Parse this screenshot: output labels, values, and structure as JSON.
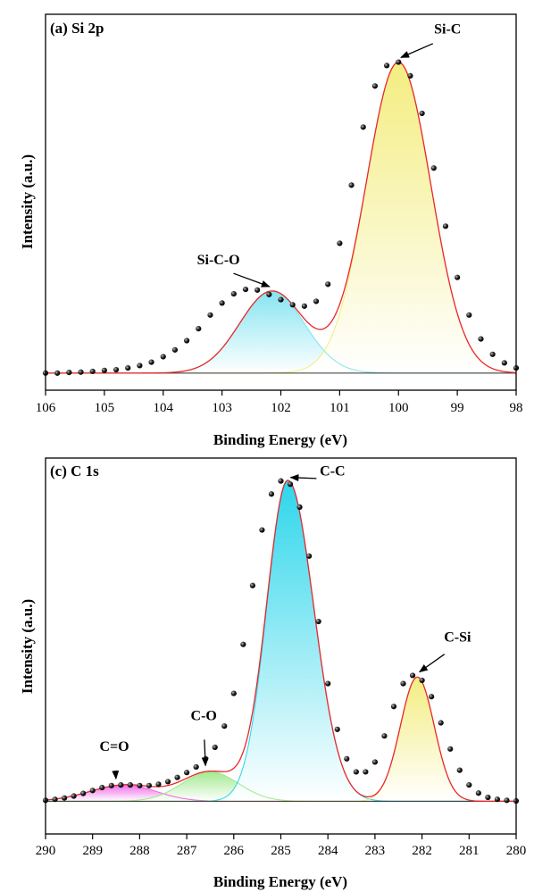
{
  "chart_data": [
    {
      "type": "line",
      "panel_label": "(a) Si 2p",
      "xlabel": "Binding Energy (eV)",
      "ylabel": "Intensity (a.u.)",
      "xlim": [
        106,
        98
      ],
      "ylim": [
        -0.05,
        1.05
      ],
      "x_reversed": true,
      "xticks": [
        106,
        105,
        104,
        103,
        102,
        101,
        100,
        99,
        98
      ],
      "y_ticks_shown": false,
      "grid": false,
      "legend": "none",
      "peaks": [
        {
          "name": "Si-C-O",
          "center": 102.15,
          "height": 0.24,
          "sigma_left": 0.55,
          "sigma_right": 0.55,
          "color": "#7fe3f0"
        },
        {
          "name": "Si-C",
          "center": 100.0,
          "height": 0.91,
          "sigma_left": 0.55,
          "sigma_right": 0.55,
          "color": "#f3ec7a"
        }
      ],
      "annotations": [
        {
          "text": "Si-C-O",
          "x": 102.15,
          "y": 0.24
        },
        {
          "text": "Si-C",
          "x": 100.0,
          "y": 0.91
        }
      ],
      "fit_color": "#e8272a",
      "data_points": {
        "x": [
          106.0,
          105.8,
          105.6,
          105.4,
          105.2,
          105.0,
          104.8,
          104.6,
          104.4,
          104.2,
          104.0,
          103.8,
          103.6,
          103.4,
          103.2,
          103.0,
          102.8,
          102.6,
          102.4,
          102.2,
          102.0,
          101.8,
          101.6,
          101.4,
          101.2,
          101.0,
          100.8,
          100.6,
          100.4,
          100.2,
          100.0,
          99.8,
          99.6,
          99.4,
          99.2,
          99.0,
          98.8,
          98.6,
          98.4,
          98.2,
          98.0
        ],
        "y": [
          0.0,
          0.0,
          0.002,
          0.003,
          0.005,
          0.008,
          0.01,
          0.015,
          0.022,
          0.032,
          0.048,
          0.068,
          0.095,
          0.13,
          0.17,
          0.205,
          0.232,
          0.245,
          0.243,
          0.23,
          0.215,
          0.2,
          0.196,
          0.21,
          0.26,
          0.38,
          0.55,
          0.72,
          0.84,
          0.9,
          0.91,
          0.87,
          0.76,
          0.6,
          0.43,
          0.28,
          0.17,
          0.1,
          0.055,
          0.03,
          0.015
        ]
      }
    },
    {
      "type": "line",
      "panel_label": "(c) C 1s",
      "xlabel": "Binding Energy (eV)",
      "ylabel": "Intensity (a.u.)",
      "xlim": [
        290,
        280
      ],
      "ylim": [
        -0.1,
        1.05
      ],
      "x_reversed": true,
      "xticks": [
        290,
        289,
        288,
        287,
        286,
        285,
        284,
        283,
        282,
        281,
        280
      ],
      "y_ticks_shown": false,
      "grid": false,
      "legend": "none",
      "peaks": [
        {
          "name": "C=O",
          "center": 288.3,
          "height": 0.05,
          "sigma_left": 0.75,
          "sigma_right": 0.65,
          "color": "#ee66e6"
        },
        {
          "name": "C-O",
          "center": 286.5,
          "height": 0.09,
          "sigma_left": 0.6,
          "sigma_right": 0.6,
          "color": "#9ee88a"
        },
        {
          "name": "C-C",
          "center": 284.85,
          "height": 0.98,
          "sigma_left": 0.45,
          "sigma_right": 0.55,
          "color": "#22d4ea"
        },
        {
          "name": "C-Si",
          "center": 282.1,
          "height": 0.38,
          "sigma_left": 0.36,
          "sigma_right": 0.36,
          "color": "#f3ec7a"
        }
      ],
      "annotations": [
        {
          "text": "C=O",
          "x": 288.5,
          "y": 0.05
        },
        {
          "text": "C-O",
          "x": 286.6,
          "y": 0.09
        },
        {
          "text": "C-C",
          "x": 284.85,
          "y": 0.98
        },
        {
          "text": "C-Si",
          "x": 282.1,
          "y": 0.38
        }
      ],
      "fit_color": "#e8272a",
      "data_points": {
        "x": [
          290.0,
          289.8,
          289.6,
          289.4,
          289.2,
          289.0,
          288.8,
          288.6,
          288.4,
          288.2,
          288.0,
          287.8,
          287.6,
          287.4,
          287.2,
          287.0,
          286.8,
          286.6,
          286.4,
          286.2,
          286.0,
          285.8,
          285.6,
          285.4,
          285.2,
          285.0,
          284.8,
          284.6,
          284.4,
          284.2,
          284.0,
          283.8,
          283.6,
          283.4,
          283.2,
          283.0,
          282.8,
          282.6,
          282.4,
          282.2,
          282.0,
          281.8,
          281.6,
          281.4,
          281.2,
          281.0,
          280.8,
          280.6,
          280.4,
          280.2,
          280.0
        ],
        "y": [
          0.003,
          0.006,
          0.01,
          0.016,
          0.024,
          0.033,
          0.042,
          0.048,
          0.05,
          0.05,
          0.048,
          0.048,
          0.052,
          0.06,
          0.073,
          0.088,
          0.105,
          0.13,
          0.165,
          0.23,
          0.33,
          0.48,
          0.66,
          0.83,
          0.94,
          0.98,
          0.97,
          0.9,
          0.75,
          0.55,
          0.36,
          0.22,
          0.13,
          0.09,
          0.09,
          0.12,
          0.2,
          0.29,
          0.36,
          0.385,
          0.37,
          0.32,
          0.24,
          0.16,
          0.095,
          0.05,
          0.025,
          0.012,
          0.006,
          0.003,
          0.001
        ]
      }
    }
  ]
}
